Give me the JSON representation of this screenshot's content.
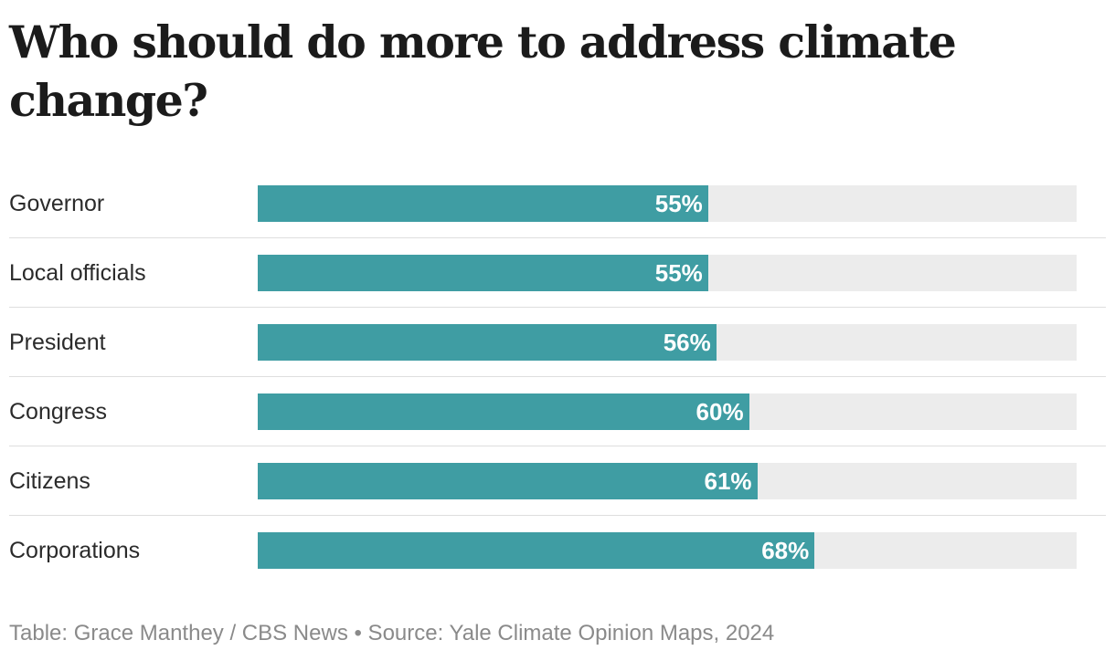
{
  "title": "Who should do more to address climate change?",
  "source": "Table: Grace Manthey / CBS News • Source: Yale Climate Opinion Maps, 2024",
  "colors": {
    "bar": "#3f9da3",
    "track": "#ececec",
    "value_text": "#ffffff",
    "source_text": "#8a8a8a"
  },
  "chart_data": {
    "type": "bar",
    "orientation": "horizontal",
    "title": "Who should do more to address climate change?",
    "categories": [
      "Governor",
      "Local officials",
      "President",
      "Congress",
      "Citizens",
      "Corporations"
    ],
    "values": [
      55,
      55,
      56,
      60,
      61,
      68
    ],
    "value_labels": [
      "55%",
      "55%",
      "56%",
      "60%",
      "61%",
      "68%"
    ],
    "xlim": [
      0,
      100
    ],
    "unit": "%",
    "grid": false,
    "legend": "none"
  }
}
